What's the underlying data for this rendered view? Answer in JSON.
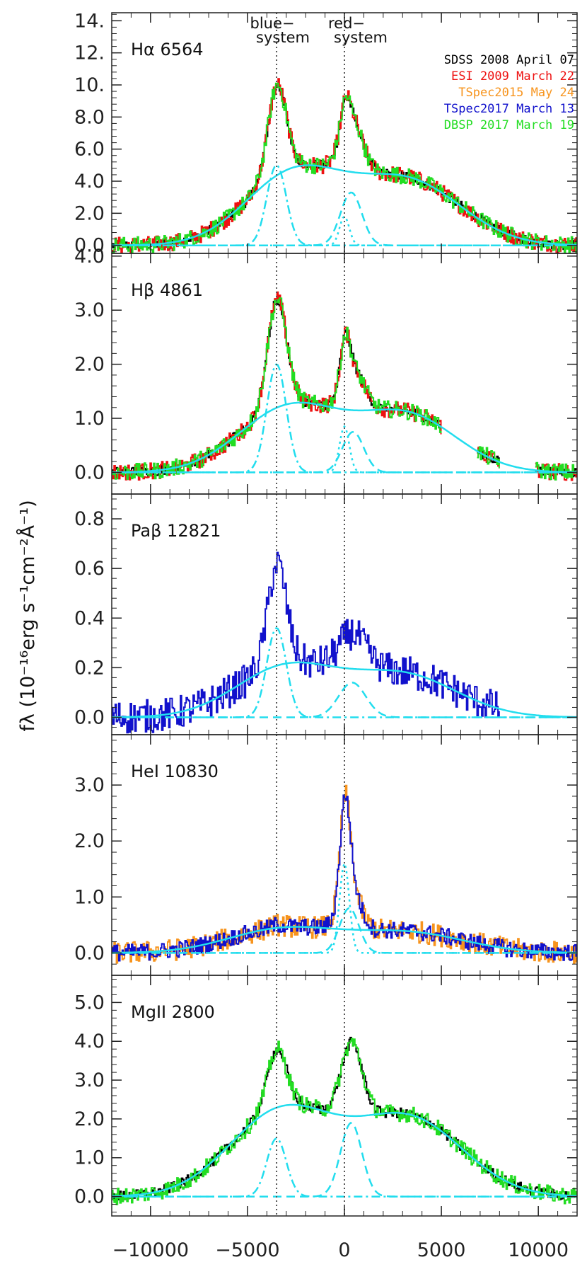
{
  "chart_data": {
    "type": "line",
    "x_axis": {
      "range": [
        -12000,
        12000
      ],
      "tick_values": [
        -10000,
        -5000,
        0,
        5000,
        10000
      ],
      "tick_labels": [
        "−10000",
        "−5000",
        "0",
        "5000",
        "10000"
      ]
    },
    "y_title": "fλ (10⁻¹⁶erg s⁻¹cm⁻²Å⁻¹)",
    "system_labels": {
      "blue_line1": "blue−",
      "blue_line2": "system",
      "red_line1": "red−",
      "red_line2": "system"
    },
    "reference_lines_x": [
      -3500,
      0
    ],
    "legend": [
      {
        "label": "SDSS 2008 April 07",
        "color": "#000000"
      },
      {
        "label": "ESI   2009 March 22",
        "color": "#ee1111"
      },
      {
        "label": "TSpec2015 May 24",
        "color": "#f7941d"
      },
      {
        "label": "TSpec2017 March 13",
        "color": "#1111cc"
      },
      {
        "label": "DBSP 2017 March 19",
        "color": "#22dd22"
      }
    ],
    "fit_color": "#22ddee",
    "panels": [
      {
        "label": "Hα 6564",
        "ylim": [
          -0.5,
          14.5
        ],
        "y_ticks": [
          0,
          2,
          4,
          6,
          8,
          10,
          12,
          14
        ],
        "y_tick_labels": [
          "0.0",
          "2.0",
          "4.0",
          "6.0",
          "8.0",
          "10.",
          "12.",
          "14."
        ],
        "broad": {
          "amp": 4.4,
          "cen": -2600,
          "sig": 2500,
          "amp2": 4.0,
          "cen2": 3200,
          "sig2": 2800
        },
        "blue_peak": {
          "amp": 5.0,
          "cen": -3500,
          "sig": 500
        },
        "red_peak": {
          "amp": 3.3,
          "cen": 350,
          "sig": 550
        },
        "red_narrow": {
          "amp": 1.8,
          "cen": 0,
          "sig": 250
        },
        "series": [
          "#000000",
          "#ee1111",
          "#22dd22"
        ],
        "observed_peaks": {
          "blue": 10.0,
          "red": 8.7
        },
        "x_range": [
          -12000,
          12000
        ]
      },
      {
        "label": "Hβ 4861",
        "ylim": [
          -0.4,
          4.05
        ],
        "y_ticks": [
          0,
          1,
          2,
          3,
          4
        ],
        "y_tick_labels": [
          "0.0",
          "1.0",
          "2.0",
          "3.0",
          "4.0"
        ],
        "broad": {
          "amp": 1.2,
          "cen": -2800,
          "sig": 2600,
          "amp2": 1.05,
          "cen2": 3200,
          "sig2": 2600
        },
        "blue_peak": {
          "amp": 2.0,
          "cen": -3500,
          "sig": 500
        },
        "red_peak": {
          "amp": 0.75,
          "cen": 450,
          "sig": 550
        },
        "red_narrow": {
          "amp": 0.85,
          "cen": 0,
          "sig": 250
        },
        "series": [
          "#000000",
          "#ee1111",
          "#22dd22"
        ],
        "observed_peaks": {
          "blue": 3.1,
          "red": 2.4
        },
        "x_range": [
          -12000,
          12000
        ]
      },
      {
        "label": "Paβ 12821",
        "ylim": [
          -0.07,
          0.9
        ],
        "y_ticks": [
          0,
          0.2,
          0.4,
          0.6,
          0.8
        ],
        "y_tick_labels": [
          "0.0",
          "0.2",
          "0.4",
          "0.6",
          "0.8"
        ],
        "broad": {
          "amp": 0.2,
          "cen": -3000,
          "sig": 2600,
          "amp2": 0.17,
          "cen2": 3000,
          "sig2": 2800
        },
        "blue_peak": {
          "amp": 0.36,
          "cen": -3500,
          "sig": 500
        },
        "red_peak": {
          "amp": 0.14,
          "cen": 400,
          "sig": 700
        },
        "red_narrow": {
          "amp": 0.0,
          "cen": 0,
          "sig": 250
        },
        "series": [
          "#1111cc"
        ],
        "observed_peaks": {
          "blue": 0.62,
          "red": 0.33
        },
        "x_range": [
          -12000,
          8000
        ]
      },
      {
        "label": "HeI 10830",
        "ylim": [
          -0.4,
          3.9
        ],
        "y_ticks": [
          0,
          1,
          2,
          3
        ],
        "y_tick_labels": [
          "0.0",
          "1.0",
          "2.0",
          "3.0"
        ],
        "broad": {
          "amp": 0.42,
          "cen": -3200,
          "sig": 2800,
          "amp2": 0.36,
          "cen2": 3200,
          "sig2": 3000
        },
        "blue_peak": {
          "amp": 0.0,
          "cen": -3500,
          "sig": 500
        },
        "red_peak": {
          "amp": 0.8,
          "cen": 250,
          "sig": 500
        },
        "red_narrow": {
          "amp": 1.6,
          "cen": 0,
          "sig": 250
        },
        "series": [
          "#f7941d",
          "#1111cc"
        ],
        "observed_peaks": {
          "blue": 0.5,
          "red": 2.75
        },
        "x_range": [
          -12000,
          12000
        ]
      },
      {
        "label": "MgII 2800",
        "ylim": [
          -0.5,
          5.7
        ],
        "y_ticks": [
          0,
          1,
          2,
          3,
          4,
          5
        ],
        "y_tick_labels": [
          "0.0",
          "1.0",
          "2.0",
          "3.0",
          "4.0",
          "5.0"
        ],
        "broad": {
          "amp": 2.2,
          "cen": -3200,
          "sig": 2700,
          "amp2": 2.0,
          "cen2": 3300,
          "sig2": 2800
        },
        "blue_peak": {
          "amp": 1.5,
          "cen": -3500,
          "sig": 500
        },
        "red_peak": {
          "amp": 1.9,
          "cen": 350,
          "sig": 550
        },
        "red_narrow": {
          "amp": 0.0,
          "cen": 0,
          "sig": 250
        },
        "series": [
          "#000000",
          "#22dd22"
        ],
        "observed_peaks": {
          "blue": 3.5,
          "red": 3.6
        },
        "x_range": [
          -12000,
          12000
        ]
      }
    ]
  }
}
